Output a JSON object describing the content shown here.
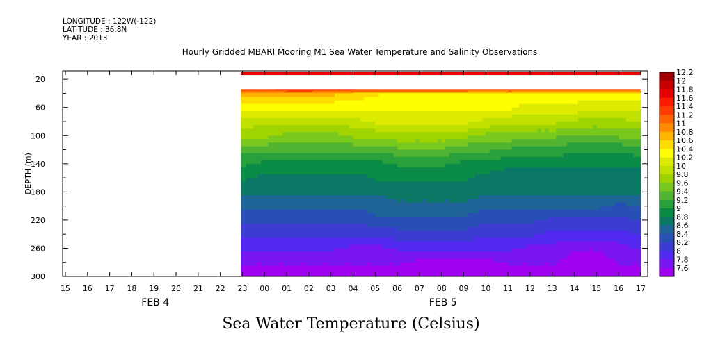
{
  "header": {
    "longitude": "LONGITUDE : 122W(-122)",
    "latitude": "LATITUDE : 36.8N",
    "year": "YEAR : 2013",
    "title": "Hourly Gridded MBARI Mooring M1 Sea Water Temperature and Salinity Observations"
  },
  "footer": {
    "variable_title": "Sea Water Temperature (Celsius)"
  },
  "chart_data": {
    "type": "heatmap",
    "title": "Hourly Gridded MBARI Mooring M1 Sea Water Temperature and Salinity Observations",
    "subtitle": "Sea Water Temperature (Celsius)",
    "xlabel": "",
    "ylabel": "DEPTH (m)",
    "x_ticks": [
      "15",
      "16",
      "17",
      "18",
      "19",
      "20",
      "21",
      "22",
      "23",
      "00",
      "01",
      "02",
      "03",
      "04",
      "05",
      "06",
      "07",
      "08",
      "09",
      "10",
      "11",
      "12",
      "13",
      "14",
      "15",
      "16",
      "17"
    ],
    "x_date_labels": [
      {
        "text": "FEB  4",
        "at_hour_index": 4
      },
      {
        "text": "FEB  5",
        "at_hour_index": 17
      }
    ],
    "y_ticks": [
      20,
      60,
      100,
      140,
      180,
      220,
      260,
      300
    ],
    "ylim": [
      300,
      8
    ],
    "y_inverted": true,
    "data_starts_at_tick": "23",
    "no_data_band_depth": [
      14,
      30
    ],
    "colorbar_levels": [
      12.2,
      12,
      11.8,
      11.6,
      11.4,
      11.2,
      11,
      10.8,
      10.6,
      10.4,
      10.2,
      10,
      9.8,
      9.6,
      9.4,
      9.2,
      9,
      8.8,
      8.6,
      8.4,
      8.2,
      8,
      7.8,
      7.6
    ],
    "colorbar_colors": [
      "#a00000",
      "#c80000",
      "#e60000",
      "#ff1a00",
      "#ff3c00",
      "#ff6400",
      "#ff8c00",
      "#ffb400",
      "#ffdc00",
      "#ffff00",
      "#dceb00",
      "#c0e000",
      "#a0d400",
      "#78c81e",
      "#50b432",
      "#28a03c",
      "#0a8c46",
      "#0a7864",
      "#1e6496",
      "#2850b4",
      "#3c3cd2",
      "#5028f0",
      "#7814f0",
      "#a000f0"
    ],
    "profiles": {
      "depths": [
        10,
        30,
        40,
        60,
        80,
        100,
        120,
        140,
        160,
        180,
        200,
        220,
        240,
        260,
        280,
        300
      ],
      "hours": [
        "23",
        "00",
        "01",
        "02",
        "03",
        "04",
        "05",
        "06",
        "07",
        "08",
        "09",
        "10",
        "11",
        "12",
        "13",
        "14",
        "15",
        "16",
        "17"
      ],
      "temperature": [
        [
          11.8,
          11.8,
          11.9,
          11.9,
          11.9,
          11.9,
          11.9,
          11.9,
          11.9,
          11.9,
          11.9,
          11.8,
          11.9,
          11.8,
          11.8,
          11.8,
          11.8,
          11.8,
          11.8
        ],
        [
          11.8,
          11.8,
          11.9,
          11.9,
          11.9,
          11.9,
          11.9,
          11.9,
          11.9,
          11.9,
          11.9,
          11.8,
          11.9,
          11.8,
          11.8,
          11.8,
          11.8,
          11.8,
          11.8
        ],
        [
          10.9,
          10.8,
          10.9,
          10.9,
          10.8,
          10.7,
          10.6,
          10.5,
          10.5,
          10.5,
          10.5,
          10.5,
          10.5,
          10.5,
          10.5,
          10.5,
          10.5,
          10.5,
          10.5
        ],
        [
          10.4,
          10.4,
          10.4,
          10.4,
          10.4,
          10.4,
          10.4,
          10.4,
          10.4,
          10.4,
          10.4,
          10.4,
          10.4,
          10.3,
          10.3,
          10.3,
          10.2,
          10.2,
          10.2
        ],
        [
          10.1,
          10.0,
          10.0,
          10.0,
          10.0,
          10.1,
          10.2,
          10.2,
          10.2,
          10.2,
          10.2,
          10.1,
          10.0,
          10.0,
          10.0,
          9.9,
          9.9,
          9.9,
          10.0
        ],
        [
          9.8,
          9.8,
          9.7,
          9.7,
          9.7,
          9.8,
          9.8,
          9.9,
          9.9,
          9.9,
          9.8,
          9.7,
          9.7,
          9.6,
          9.6,
          9.5,
          9.5,
          9.6,
          9.6
        ],
        [
          9.4,
          9.4,
          9.4,
          9.4,
          9.4,
          9.4,
          9.4,
          9.5,
          9.5,
          9.5,
          9.4,
          9.4,
          9.3,
          9.3,
          9.3,
          9.2,
          9.2,
          9.2,
          9.3
        ],
        [
          9.2,
          9.1,
          9.1,
          9.1,
          9.1,
          9.1,
          9.1,
          9.2,
          9.2,
          9.2,
          9.1,
          9.1,
          9.0,
          9.0,
          9.0,
          9.0,
          9.0,
          9.0,
          9.0
        ],
        [
          9.0,
          8.9,
          8.9,
          8.9,
          8.9,
          8.9,
          9.0,
          9.0,
          9.0,
          9.0,
          9.0,
          8.9,
          8.9,
          8.9,
          8.9,
          8.9,
          8.9,
          8.9,
          8.9
        ],
        [
          8.8,
          8.8,
          8.8,
          8.8,
          8.8,
          8.8,
          8.8,
          8.9,
          8.9,
          8.9,
          8.9,
          8.8,
          8.8,
          8.8,
          8.8,
          8.8,
          8.8,
          8.8,
          8.8
        ],
        [
          8.6,
          8.6,
          8.6,
          8.6,
          8.6,
          8.6,
          8.7,
          8.7,
          8.7,
          8.7,
          8.7,
          8.6,
          8.6,
          8.6,
          8.6,
          8.6,
          8.6,
          8.5,
          8.6
        ],
        [
          8.4,
          8.4,
          8.4,
          8.4,
          8.4,
          8.4,
          8.5,
          8.5,
          8.5,
          8.5,
          8.5,
          8.4,
          8.4,
          8.4,
          8.3,
          8.3,
          8.3,
          8.3,
          8.4
        ],
        [
          8.2,
          8.2,
          8.2,
          8.2,
          8.2,
          8.2,
          8.2,
          8.3,
          8.3,
          8.3,
          8.3,
          8.2,
          8.2,
          8.2,
          8.1,
          8.1,
          8.1,
          8.1,
          8.2
        ],
        [
          8.0,
          8.0,
          8.0,
          8.0,
          8.0,
          7.9,
          7.9,
          8.0,
          8.0,
          8.0,
          8.0,
          8.0,
          8.0,
          7.9,
          7.9,
          7.8,
          7.8,
          7.9,
          8.0
        ],
        [
          7.8,
          7.8,
          7.8,
          7.8,
          7.8,
          7.8,
          7.8,
          7.8,
          7.7,
          7.7,
          7.7,
          7.7,
          7.8,
          7.8,
          7.8,
          7.7,
          7.7,
          7.8,
          7.8
        ],
        [
          7.7,
          7.7,
          7.7,
          7.7,
          7.7,
          7.7,
          7.7,
          7.6,
          7.6,
          7.6,
          7.6,
          7.6,
          7.6,
          7.7,
          7.7,
          7.7,
          7.6,
          7.7,
          7.7
        ]
      ]
    },
    "grid": false,
    "legend": "right colorbar"
  }
}
